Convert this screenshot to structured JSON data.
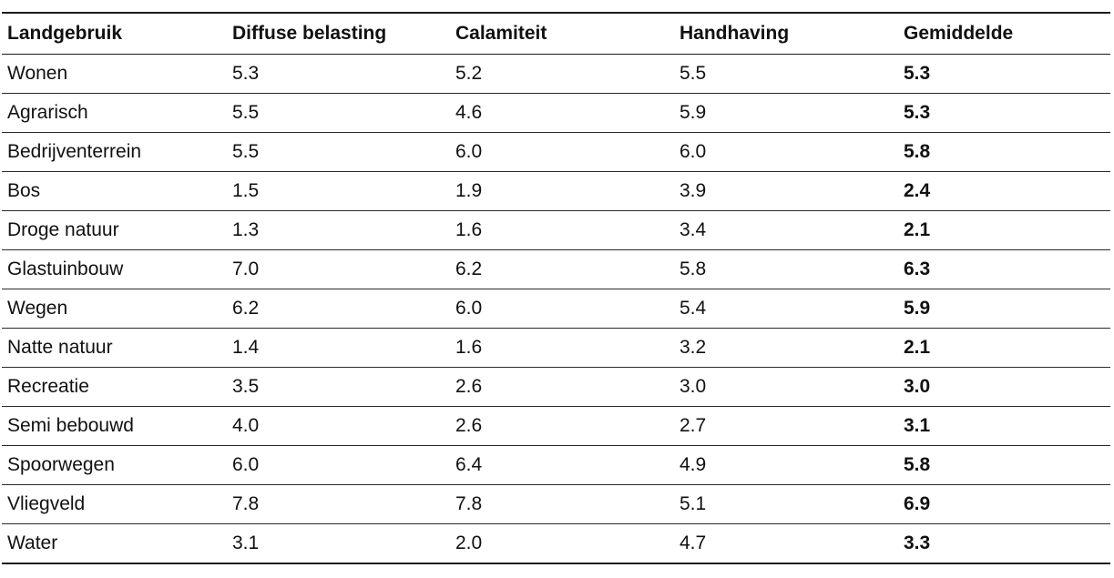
{
  "table": {
    "headers": [
      "Landgebruik",
      "Diffuse belasting",
      "Calamiteit",
      "Handhaving",
      "Gemiddelde"
    ],
    "rows": [
      [
        "Wonen",
        "5.3",
        "5.2",
        "5.5",
        "5.3"
      ],
      [
        "Agrarisch",
        "5.5",
        "4.6",
        "5.9",
        "5.3"
      ],
      [
        "Bedrijventerrein",
        "5.5",
        "6.0",
        "6.0",
        "5.8"
      ],
      [
        "Bos",
        "1.5",
        "1.9",
        "3.9",
        "2.4"
      ],
      [
        "Droge natuur",
        "1.3",
        "1.6",
        "3.4",
        "2.1"
      ],
      [
        "Glastuinbouw",
        "7.0",
        "6.2",
        "5.8",
        "6.3"
      ],
      [
        "Wegen",
        "6.2",
        "6.0",
        "5.4",
        "5.9"
      ],
      [
        "Natte natuur",
        "1.4",
        "1.6",
        "3.2",
        "2.1"
      ],
      [
        "Recreatie",
        "3.5",
        "2.6",
        "3.0",
        "3.0"
      ],
      [
        "Semi bebouwd",
        "4.0",
        "2.6",
        "2.7",
        "3.1"
      ],
      [
        "Spoorwegen",
        "6.0",
        "6.4",
        "4.9",
        "5.8"
      ],
      [
        "Vliegveld",
        "7.8",
        "7.8",
        "5.1",
        "6.9"
      ],
      [
        "Water",
        "3.1",
        "2.0",
        "4.7",
        "3.3"
      ]
    ]
  },
  "colors": {
    "text": "#111111",
    "rule": "#1a1a1a",
    "background": "#ffffff"
  }
}
